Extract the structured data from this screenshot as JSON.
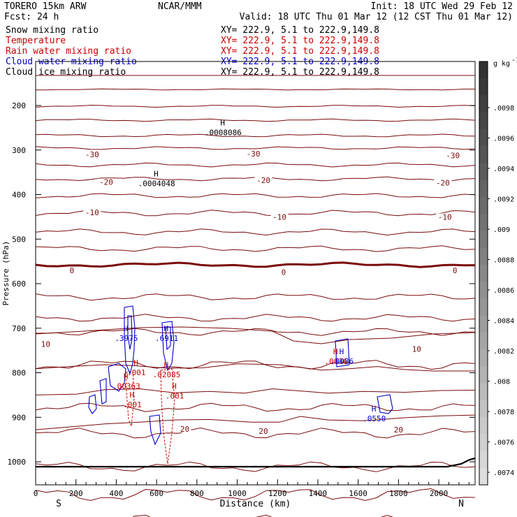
{
  "header": {
    "left1": "TORERO  15km ARW",
    "center1": "NCAR/MMM",
    "right1": "Init: 18 UTC Wed 29 Feb 12",
    "left2": "Fcst:   24 h",
    "right2": "Valid: 18 UTC Thu 01 Mar 12 (12 CST Thu 01 Mar 12)"
  },
  "legend": [
    {
      "label": "Snow mixing ratio",
      "xy": "XY= 222.9,  5.1 to 222.9,149.8",
      "color": "#000000"
    },
    {
      "label": "Temperature",
      "xy": "XY= 222.9,  5.1 to 222.9,149.8",
      "color": "#cc0000"
    },
    {
      "label": "Rain water mixing ratio",
      "xy": "XY= 222.9,  5.1 to 222.9,149.8",
      "color": "#cc0000"
    },
    {
      "label": "Cloud water mixing ratio",
      "xy": "XY= 222.9,  5.1 to 222.9,149.8",
      "color": "#0000cc"
    },
    {
      "label": "Cloud ice mixing ratio",
      "xy": "XY= 222.9,  5.1 to 222.9,149.8",
      "color": "#000000"
    }
  ],
  "colorbar": {
    "unit": "g kg",
    "unit_exp": "-1",
    "ticks": [
      ".0098",
      ".0096",
      ".0094",
      ".0092",
      ".009",
      ".0088",
      ".0086",
      ".0084",
      ".0082",
      ".008",
      ".0078",
      ".0076",
      ".0074"
    ]
  },
  "colors": {
    "temperature": "#7a0a0a",
    "rain": "#cc0000",
    "cloud_water": "#0000cc",
    "ice": "#000000"
  },
  "chart_data": {
    "type": "contour-cross-section",
    "xlabel": "Distance (km)",
    "ylabel": "Pressure (hPa)",
    "xlim": [
      0,
      2180
    ],
    "ylim": [
      1050,
      100
    ],
    "x_ticks": [
      0,
      200,
      400,
      600,
      800,
      1000,
      1200,
      1400,
      1600,
      1800,
      2000
    ],
    "x_tick_labels": [
      "0",
      "200",
      "400",
      "600",
      "800",
      "1000",
      "1200",
      "1400",
      "1600",
      "1800",
      "2000"
    ],
    "y_ticks": [
      200,
      300,
      400,
      500,
      600,
      700,
      800,
      900,
      1000
    ],
    "y_tick_labels": [
      "200",
      "300",
      "400",
      "500",
      "600",
      "700",
      "800",
      "900",
      "1000"
    ],
    "endpoints": {
      "left": "S",
      "right": "N"
    },
    "temperature_labels": [
      {
        "text": "-30",
        "x": 280,
        "p": 310
      },
      {
        "text": "-30",
        "x": 1080,
        "p": 308
      },
      {
        "text": "-30",
        "x": 2070,
        "p": 312
      },
      {
        "text": "-20",
        "x": 350,
        "p": 372
      },
      {
        "text": "-20",
        "x": 1130,
        "p": 368
      },
      {
        "text": "-20",
        "x": 2020,
        "p": 373
      },
      {
        "text": "-10",
        "x": 280,
        "p": 440
      },
      {
        "text": "-10",
        "x": 1210,
        "p": 450
      },
      {
        "text": "-10",
        "x": 2030,
        "p": 450
      },
      {
        "text": "0",
        "x": 180,
        "p": 570
      },
      {
        "text": "0",
        "x": 1230,
        "p": 574
      },
      {
        "text": "0",
        "x": 2080,
        "p": 570
      },
      {
        "text": "10",
        "x": 50,
        "p": 736
      },
      {
        "text": "10",
        "x": 1890,
        "p": 747
      },
      {
        "text": "20",
        "x": 740,
        "p": 926
      },
      {
        "text": "20",
        "x": 1130,
        "p": 931
      },
      {
        "text": "20",
        "x": 1800,
        "p": 928
      }
    ],
    "maxima": [
      {
        "text": ".0008086",
        "x": 930,
        "p": 260,
        "series": "ice"
      },
      {
        "text": ".0004048",
        "x": 600,
        "p": 375,
        "series": "ice"
      },
      {
        "text": ".3975",
        "x": 450,
        "p": 722,
        "series": "cloud_water"
      },
      {
        "text": ".6911",
        "x": 650,
        "p": 722,
        "series": "cloud_water"
      },
      {
        "text": ".001",
        "x": 500,
        "p": 799,
        "series": "rain"
      },
      {
        "text": ".0036",
        "x": 1490,
        "p": 774,
        "series": "rain"
      },
      {
        "text": ".0086",
        "x": 1520,
        "p": 774,
        "series": "cloud_water"
      },
      {
        "text": ".02085",
        "x": 650,
        "p": 804,
        "series": "rain"
      },
      {
        "text": ".00363",
        "x": 450,
        "p": 830,
        "series": "rain"
      },
      {
        "text": ".001",
        "x": 690,
        "p": 852,
        "series": "rain"
      },
      {
        "text": ".001",
        "x": 480,
        "p": 871,
        "series": "rain"
      },
      {
        "text": ".0550",
        "x": 1680,
        "p": 903,
        "series": "cloud_water"
      }
    ]
  }
}
